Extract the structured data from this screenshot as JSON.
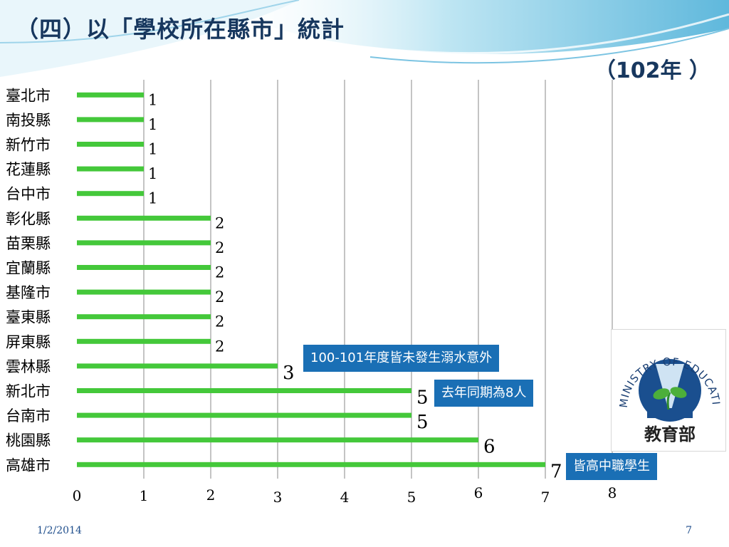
{
  "title": "（四）以「學校所在縣市」統計",
  "subtitle": "（102年 ）",
  "chart_data": {
    "type": "bar",
    "orientation": "horizontal",
    "categories": [
      "臺北市",
      "南投縣",
      "新竹市",
      "花蓮縣",
      "台中市",
      "彰化縣",
      "苗栗縣",
      "宜蘭縣",
      "基隆市",
      "臺東縣",
      "屏東縣",
      "雲林縣",
      "新北市",
      "台南市",
      "桃園縣",
      "高雄市"
    ],
    "values": [
      1,
      1,
      1,
      1,
      1,
      2,
      2,
      2,
      2,
      2,
      2,
      3,
      5,
      5,
      6,
      7
    ],
    "x_ticks": [
      "0",
      "1",
      "2",
      "3",
      "4",
      "5",
      "6",
      "7",
      "8"
    ],
    "xlim": [
      0,
      8
    ],
    "grid": "vertical",
    "bar_color": "#44c83a",
    "title": "",
    "xlabel": "",
    "ylabel": ""
  },
  "callouts": {
    "note_1": "100-101年度皆未發生溺水意外",
    "note_2": "去年同期為8人",
    "note_3": "皆高中職學生"
  },
  "logo": {
    "arc_text": "MINISTRY OF EDUCATION",
    "caption": "教育部"
  },
  "footer": {
    "date": "1/2/2014",
    "page": "7"
  },
  "colors": {
    "title": "#17375e",
    "callout_bg": "#1a6fb5",
    "header_band": "#5fb8dc"
  }
}
